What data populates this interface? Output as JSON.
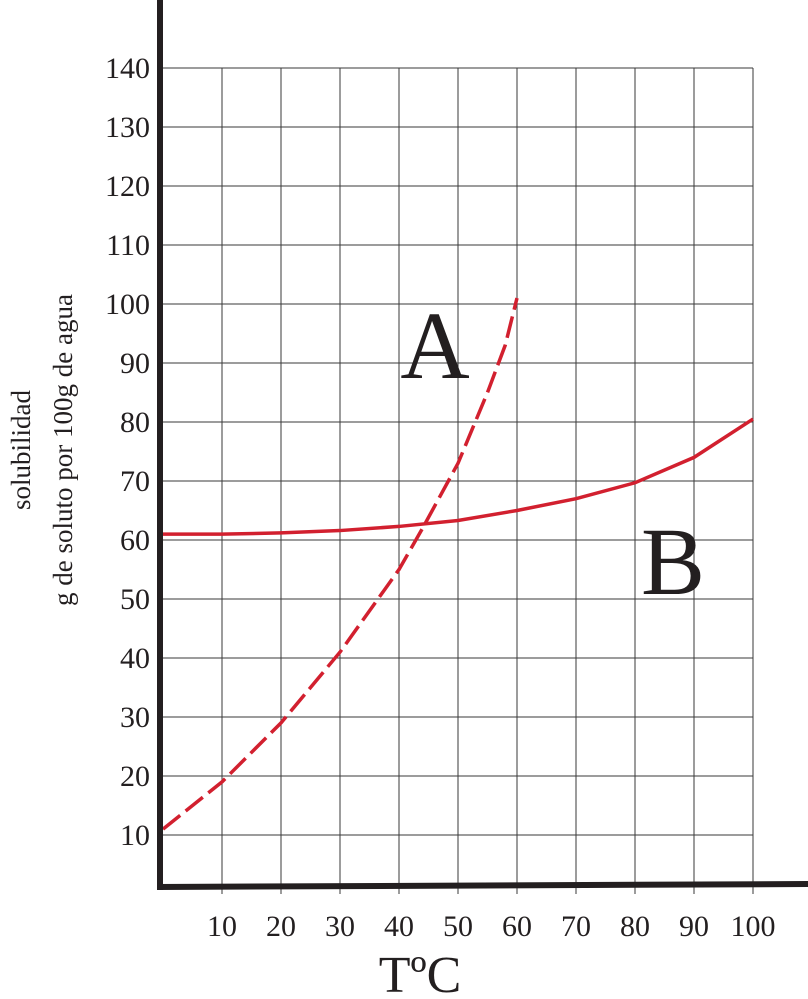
{
  "chart_data": {
    "type": "line",
    "x_label": "TºC",
    "y_label": [
      "solubilidad",
      "g de soluto por 100g de agua"
    ],
    "xlim": [
      0,
      110
    ],
    "ylim": [
      0,
      150
    ],
    "xticks": [
      10,
      20,
      30,
      40,
      50,
      60,
      70,
      80,
      90,
      100
    ],
    "yticks": [
      10,
      20,
      30,
      40,
      50,
      60,
      70,
      80,
      90,
      100,
      110,
      120,
      130,
      140
    ],
    "grid": true,
    "series": [
      {
        "name": "A",
        "color": "#d2202f",
        "dashed": true,
        "x": [
          0,
          10,
          20,
          30,
          40,
          44,
          50,
          55,
          58,
          60
        ],
        "values": [
          11,
          19,
          29,
          41,
          55,
          62,
          73,
          85,
          93,
          101
        ]
      },
      {
        "name": "B",
        "color": "#d2202f",
        "dashed": false,
        "x": [
          0,
          10,
          20,
          30,
          40,
          50,
          60,
          70,
          80,
          90,
          100
        ],
        "values": [
          61,
          61,
          61.2,
          61.6,
          62.3,
          63.3,
          65,
          67,
          69.7,
          74,
          80.5
        ]
      }
    ]
  }
}
